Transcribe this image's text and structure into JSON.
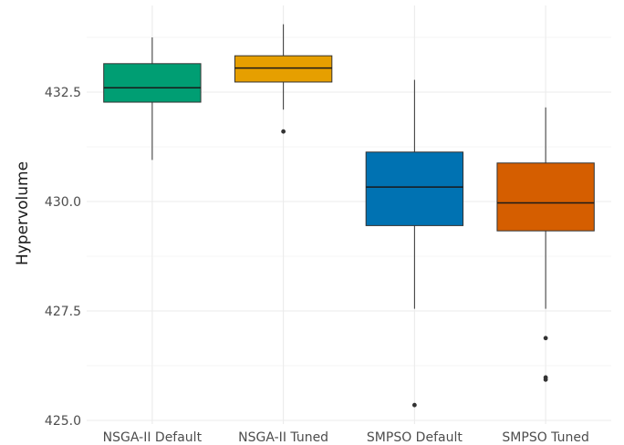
{
  "chart_data": {
    "type": "boxplot",
    "title": "",
    "xlabel": "",
    "ylabel": "Hypervolume",
    "ylim": [
      425.0,
      433.9
    ],
    "y_ticks": [
      425.0,
      427.5,
      430.0,
      432.5
    ],
    "y_tick_labels": [
      "425.0",
      "427.5",
      "430.0",
      "432.5"
    ],
    "grid": true,
    "legend": "none",
    "categories": [
      "NSGA-II Default",
      "NSGA-II Tuned",
      "SMPSO Default",
      "SMPSO Tuned"
    ],
    "boxes": [
      {
        "category": "NSGA-II Default",
        "color": "#009E73",
        "whisker_low": 430.95,
        "q1": 432.27,
        "median": 432.6,
        "q3": 433.15,
        "whisker_high": 433.75,
        "outliers": []
      },
      {
        "category": "NSGA-II Tuned",
        "color": "#E69F00",
        "whisker_low": 432.1,
        "q1": 432.73,
        "median": 433.05,
        "q3": 433.33,
        "whisker_high": 434.05,
        "outliers": [
          431.6
        ]
      },
      {
        "category": "SMPSO Default",
        "color": "#0072B2",
        "whisker_low": 427.55,
        "q1": 429.45,
        "median": 430.33,
        "q3": 431.13,
        "whisker_high": 432.78,
        "outliers": [
          425.35
        ]
      },
      {
        "category": "SMPSO Tuned",
        "color": "#D55E00",
        "whisker_low": 427.55,
        "q1": 429.33,
        "median": 429.97,
        "q3": 430.88,
        "whisker_high": 432.15,
        "outliers": [
          426.88,
          425.98,
          425.93
        ]
      }
    ]
  }
}
